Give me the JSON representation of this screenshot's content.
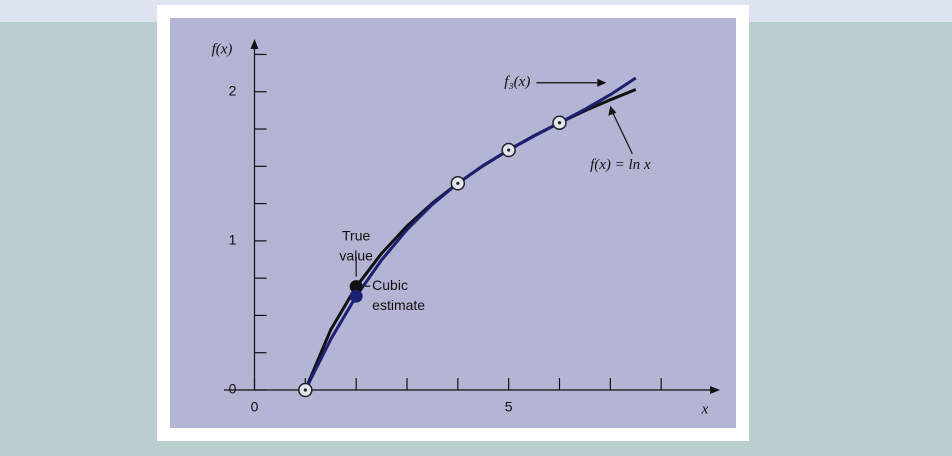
{
  "chart_data": {
    "type": "line",
    "x": [
      1,
      1.5,
      2,
      2.5,
      3,
      3.5,
      4,
      4.5,
      5,
      5.5,
      6,
      6.5,
      7,
      7.5
    ],
    "series": [
      {
        "name": "f(x) = ln x",
        "color": "#111111",
        "values": [
          0,
          0.405,
          0.693,
          0.916,
          1.099,
          1.253,
          1.386,
          1.504,
          1.609,
          1.705,
          1.792,
          1.872,
          1.946,
          2.015
        ]
      },
      {
        "name": "f₃(x)",
        "color": "#1d2070",
        "values": [
          0,
          0.34,
          0.629,
          0.872,
          1.075,
          1.245,
          1.386,
          1.506,
          1.609,
          1.703,
          1.792,
          1.882,
          1.98,
          2.092
        ]
      }
    ],
    "points": {
      "x": [
        1,
        4,
        5,
        6
      ],
      "values": [
        0,
        1.386,
        1.609,
        1.792
      ]
    },
    "annotations": [
      {
        "lines": [
          "True",
          "value"
        ],
        "x": 2,
        "y": 0.693,
        "color": "#111111"
      },
      {
        "lines": [
          "Cubic",
          "estimate"
        ],
        "x": 2,
        "y": 0.629,
        "color": "#1d2070"
      }
    ],
    "x_label": "x",
    "y_label": "f(x)",
    "xlim": [
      -0.6,
      9
    ],
    "ylim": [
      0,
      2.3
    ],
    "xticks": [
      0,
      5
    ],
    "x_minor_ticks": [
      1,
      2,
      3,
      4,
      6,
      7,
      8
    ],
    "yticks": [
      0,
      1,
      2
    ],
    "y_minor_ticks": [
      0.25,
      0.5,
      0.75,
      1.25,
      1.5,
      1.75,
      2.25
    ]
  }
}
